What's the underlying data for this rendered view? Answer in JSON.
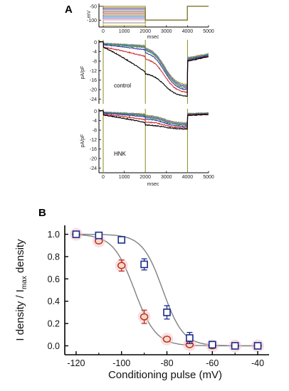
{
  "chart_data": [
    {
      "panel": "A",
      "subpanel": "protocol",
      "type": "line",
      "ylabel": "mV",
      "xlabel": "msec",
      "y_ticks": [
        "-50",
        "-100"
      ],
      "x_ticks": [
        "0",
        "1000",
        "2000",
        "3000",
        "4000",
        "5000"
      ],
      "xlim": [
        -200,
        5000
      ],
      "ylim": [
        -125,
        -40
      ],
      "conditioning_mV": [
        -120,
        -110,
        -100,
        -95,
        -90,
        -85,
        -80,
        -75,
        -70,
        -65,
        -60,
        -55,
        -50
      ],
      "test_mV": -100,
      "hold_mV": -50,
      "segments_ms": [
        0,
        2000,
        4000,
        5000
      ],
      "colors": [
        "#c8b428",
        "#8a8a8a",
        "#e8b0c0",
        "#9b6ab0",
        "#4aa0d0",
        "#5a5ab0",
        "#c0a040",
        "#d04040",
        "#40a040",
        "#e06ab0",
        "#2a3aa8",
        "#9a6a2a",
        "#8a8a20"
      ]
    },
    {
      "panel": "A",
      "subpanel": "control",
      "type": "line",
      "annotation": "control",
      "ylabel": "pA/pF",
      "xlabel": "msec",
      "y_ticks": [
        "0",
        "-4",
        "-8",
        "-12",
        "-16",
        "-20",
        "-24"
      ],
      "x_ticks": [
        "0",
        "1000",
        "2000",
        "3000",
        "4000",
        "5000"
      ],
      "xlim": [
        -200,
        5000
      ],
      "ylim": [
        -26,
        1
      ],
      "series": [
        {
          "color": "#000000",
          "step1_end": -12.5,
          "step2_start": -13.0,
          "step2_end": -23.0,
          "tail": -8.0
        },
        {
          "color": "#d03030",
          "step1_end": -6.0,
          "step2_start": -6.5,
          "step2_end": -21.5,
          "tail": -8.0
        },
        {
          "color": "#3a3ab0",
          "step1_end": -3.2,
          "step2_start": -3.8,
          "step2_end": -20.5,
          "tail": -7.5
        },
        {
          "color": "#30a030",
          "step1_end": -2.3,
          "step2_start": -2.8,
          "step2_end": -19.8,
          "tail": -7.2
        },
        {
          "color": "#b050c0",
          "step1_end": -1.9,
          "step2_start": -2.3,
          "step2_end": -19.2,
          "tail": -7.0
        },
        {
          "color": "#30a0c0",
          "step1_end": -1.6,
          "step2_start": -2.0,
          "step2_end": -18.8,
          "tail": -6.8
        },
        {
          "color": "#c0a040",
          "step1_end": -1.4,
          "step2_start": -1.8,
          "step2_end": -18.3,
          "tail": -6.5
        }
      ]
    },
    {
      "panel": "A",
      "subpanel": "HNK",
      "type": "line",
      "annotation": "HNK",
      "ylabel": "pA/pF",
      "xlabel": "msec",
      "y_ticks": [
        "0",
        "-4",
        "-8",
        "-12",
        "-16",
        "-20",
        "-24"
      ],
      "x_ticks": [
        "0",
        "1000",
        "2000",
        "3000",
        "4000",
        "5000"
      ],
      "xlim": [
        -200,
        5000
      ],
      "ylim": [
        -26,
        1
      ],
      "series": [
        {
          "color": "#000000",
          "step1_end": -4.8,
          "step2_start": -5.8,
          "step2_end": -7.6,
          "tail": -1.8
        },
        {
          "color": "#d03030",
          "step1_end": -3.6,
          "step2_start": -4.5,
          "step2_end": -7.2,
          "tail": -1.7
        },
        {
          "color": "#3a3ab0",
          "step1_end": -2.4,
          "step2_start": -3.2,
          "step2_end": -6.6,
          "tail": -1.5
        },
        {
          "color": "#30a030",
          "step1_end": -1.9,
          "step2_start": -2.6,
          "step2_end": -6.0,
          "tail": -1.3
        },
        {
          "color": "#b050c0",
          "step1_end": -1.6,
          "step2_start": -2.2,
          "step2_end": -5.6,
          "tail": -1.2
        },
        {
          "color": "#30a0c0",
          "step1_end": -1.4,
          "step2_start": -1.9,
          "step2_end": -5.3,
          "tail": -1.1
        },
        {
          "color": "#c0a040",
          "step1_end": -1.2,
          "step2_start": -1.6,
          "step2_end": -5.0,
          "tail": -1.0
        }
      ]
    },
    {
      "panel": "B",
      "type": "scatter",
      "xlabel": "Conditioning pulse (mV)",
      "ylabel_main": "I density / I",
      "ylabel_sub": "max",
      "ylabel_tail": " density",
      "xlim": [
        -125,
        -35
      ],
      "ylim": [
        -0.08,
        1.08
      ],
      "x_ticks": [
        "-120",
        "-100",
        "-80",
        "-60",
        "-40"
      ],
      "y_ticks": [
        "0.0",
        "0.2",
        "0.4",
        "0.6",
        "0.8",
        "1.0"
      ],
      "series": [
        {
          "marker": "square",
          "color": "#1a2a8c",
          "x": [
            -120,
            -110,
            -100,
            -90,
            -80,
            -70,
            -60,
            -50,
            -40
          ],
          "y": [
            1.0,
            0.99,
            0.95,
            0.73,
            0.3,
            0.07,
            0.01,
            0.0,
            0.0
          ],
          "err": [
            0.0,
            0.0,
            0.02,
            0.05,
            0.06,
            0.05,
            0.03,
            0.0,
            0.0
          ],
          "fit_v_half": -81.8,
          "fit_k": 4.5
        },
        {
          "marker": "circle",
          "color": "#c03020",
          "x": [
            -120,
            -110,
            -100,
            -90,
            -80,
            -70,
            -60,
            -50,
            -40
          ],
          "y": [
            1.0,
            0.94,
            0.72,
            0.26,
            0.06,
            0.01,
            0.0,
            0.0,
            0.0
          ],
          "err": [
            0.0,
            0.02,
            0.05,
            0.06,
            0.02,
            0.01,
            0.0,
            0.0,
            0.0
          ],
          "fit_v_half": -94.3,
          "fit_k": 4.7
        }
      ]
    }
  ],
  "labels": {
    "panel_a": "A",
    "panel_b": "B"
  }
}
